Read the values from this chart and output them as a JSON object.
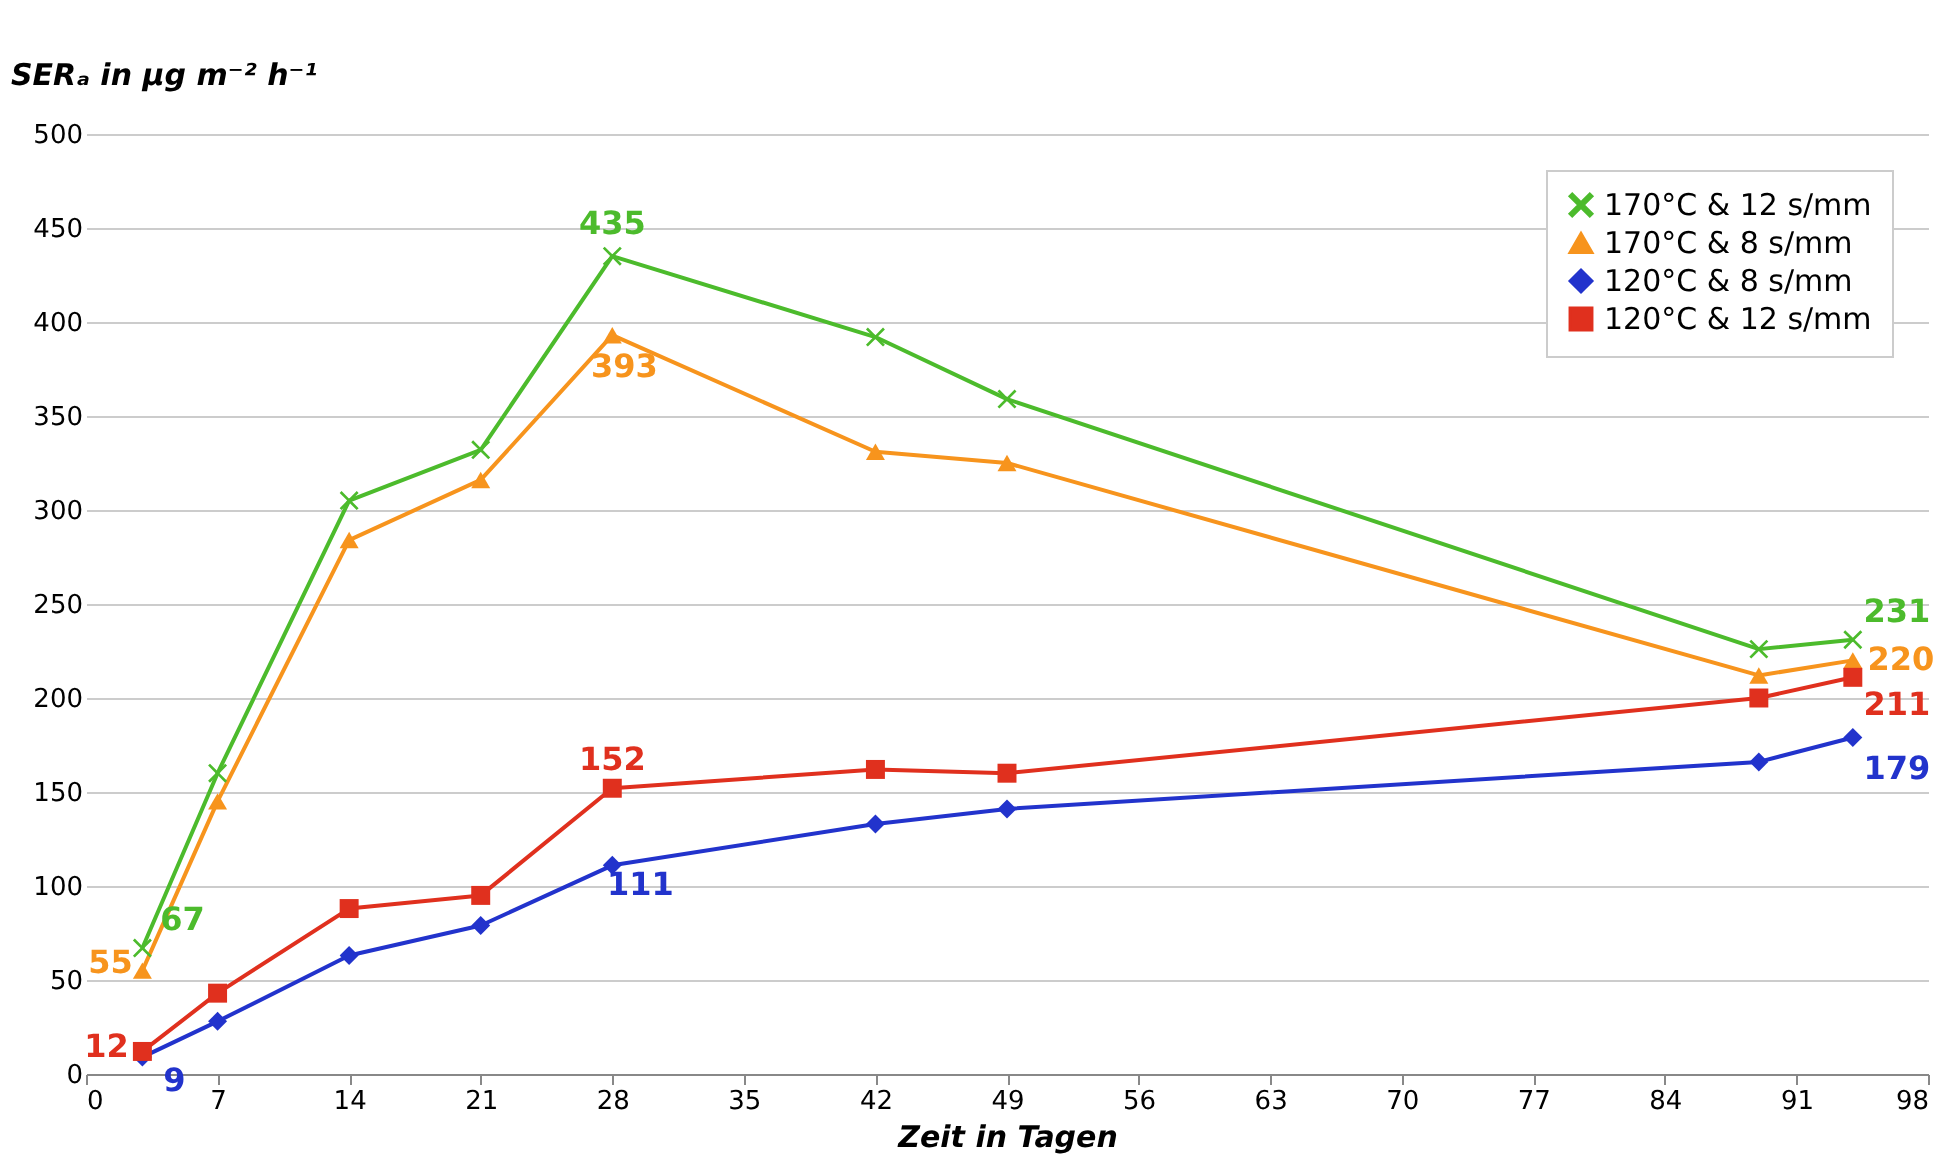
{
  "chart_data": {
    "type": "line",
    "xlabel": "Zeit in Tagen",
    "ylabel": "SERₐ in µg m⁻² h⁻¹",
    "x": [
      3,
      7,
      14,
      21,
      28,
      42,
      49,
      89,
      94
    ],
    "xlim": [
      0,
      98
    ],
    "xticks": [
      0,
      7,
      14,
      21,
      28,
      35,
      42,
      49,
      56,
      63,
      70,
      77,
      84,
      91,
      98
    ],
    "ylim": [
      0,
      500
    ],
    "yticks": [
      0,
      50,
      100,
      150,
      200,
      250,
      300,
      350,
      400,
      450,
      500
    ],
    "grid": "y",
    "legend": "top right",
    "line_style": "solid",
    "series": [
      {
        "name": "170°C & 12 s/mm",
        "color": "#4cbb2c",
        "marker": "cross",
        "values": [
          67,
          160,
          305,
          332,
          435,
          392,
          359,
          226,
          231
        ],
        "value_labels": [
          "67",
          null,
          null,
          null,
          "435",
          null,
          null,
          null,
          "231"
        ]
      },
      {
        "name": "170°C & 8 s/mm",
        "color": "#f7941d",
        "marker": "triangle",
        "values": [
          55,
          145,
          284,
          316,
          393,
          331,
          325,
          212,
          220
        ],
        "value_labels": [
          "55",
          null,
          null,
          null,
          "393",
          null,
          null,
          null,
          "220"
        ]
      },
      {
        "name": "120°C & 8 s/mm",
        "color": "#2233cc",
        "marker": "diamond",
        "values": [
          9,
          28,
          63,
          79,
          111,
          133,
          141,
          166,
          179
        ],
        "value_labels": [
          "9",
          null,
          null,
          null,
          "111",
          null,
          null,
          null,
          "179"
        ]
      },
      {
        "name": "120°C & 12 s/mm",
        "color": "#e0301e",
        "marker": "square",
        "values": [
          12,
          43,
          88,
          95,
          152,
          162,
          160,
          200,
          211
        ],
        "value_labels": [
          "12",
          null,
          null,
          null,
          "152",
          null,
          null,
          null,
          "211"
        ]
      }
    ]
  }
}
